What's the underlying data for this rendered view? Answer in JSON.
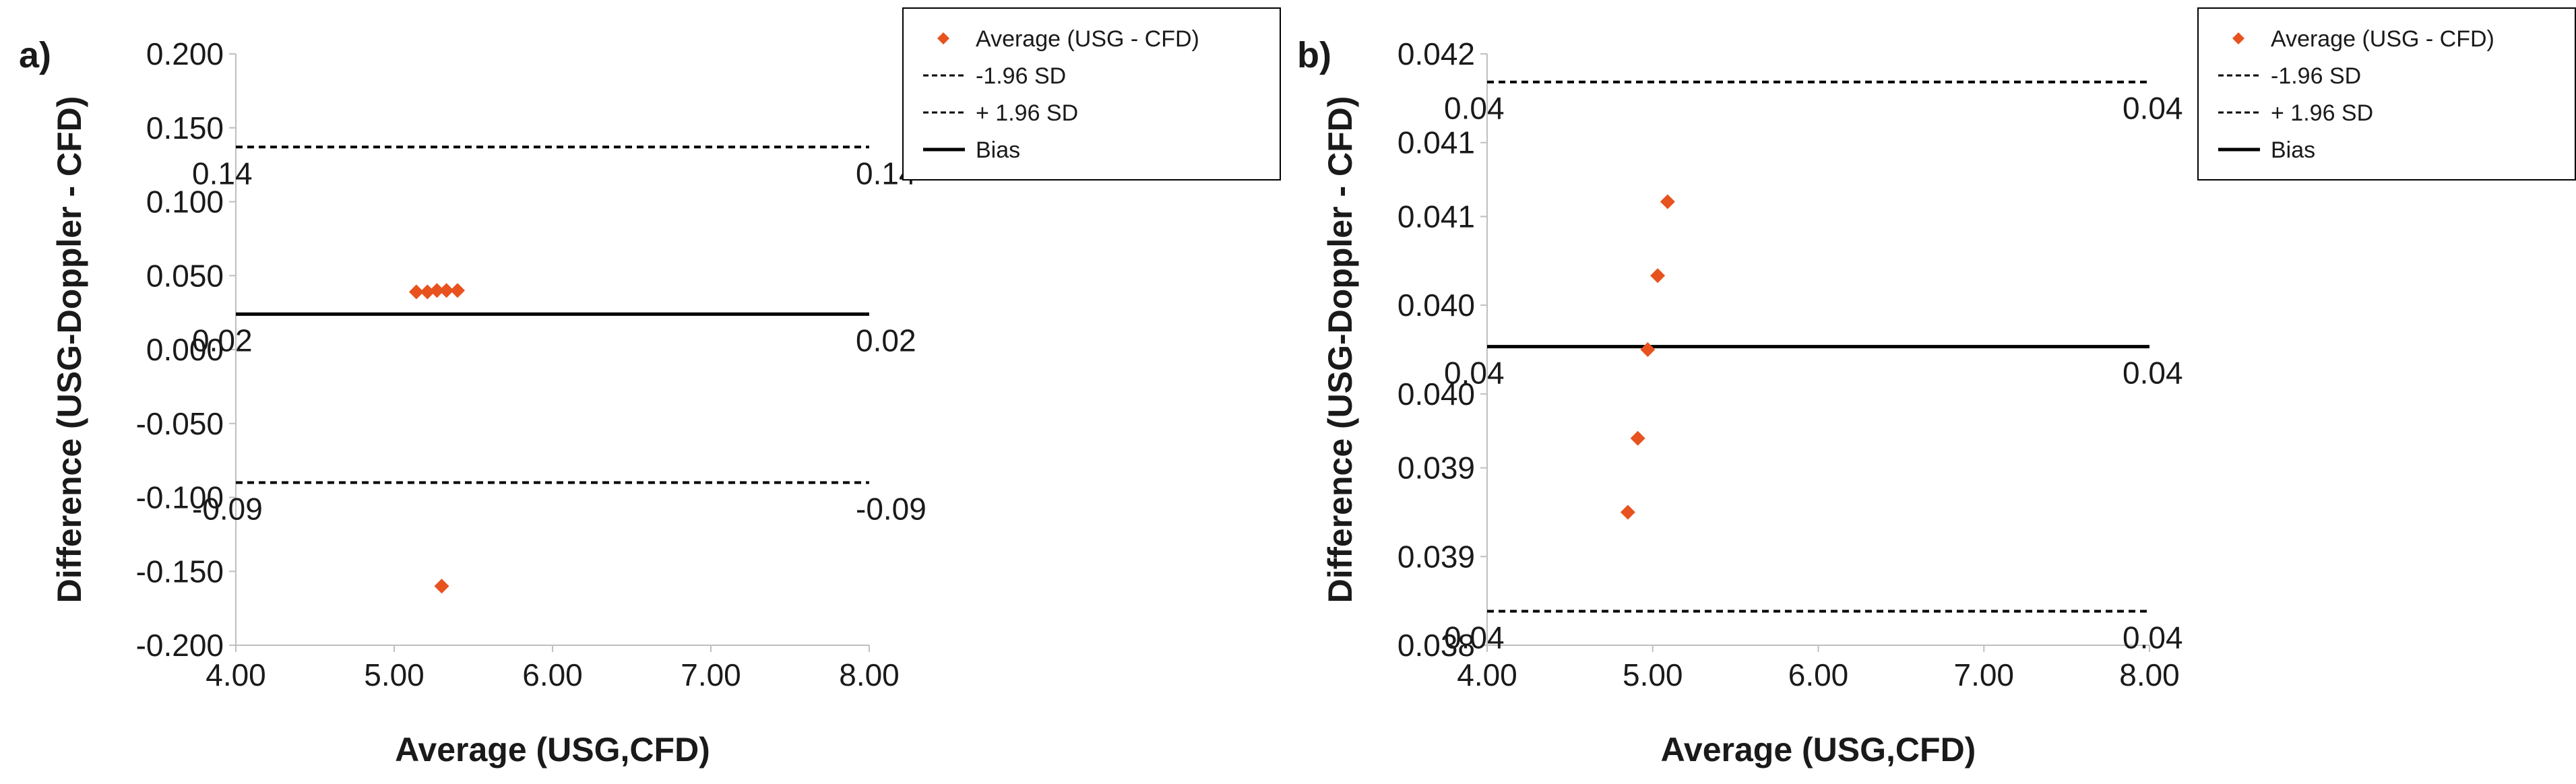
{
  "chart_data": [
    {
      "type": "scatter",
      "panel_label": "a)",
      "xlabel": "Average (USG,CFD)",
      "ylabel": "Difference (USG-Doppler - CFD)",
      "xlim": [
        4.0,
        8.0
      ],
      "ylim": [
        -0.2,
        0.2
      ],
      "x_ticks": [
        "4.00",
        "5.00",
        "6.00",
        "7.00",
        "8.00"
      ],
      "y_ticks": [
        "0.200",
        "0.150",
        "0.100",
        "0.050",
        "0.000",
        "-0.050",
        "-0.100",
        "-0.150",
        "-0.200"
      ],
      "y_tick_values": [
        0.2,
        0.15,
        0.1,
        0.05,
        0.0,
        -0.05,
        -0.1,
        -0.15,
        -0.2
      ],
      "series": [
        {
          "name": "Average (USG - CFD)",
          "color": "#e8521f",
          "points": [
            {
              "x": 5.14,
              "y": 0.039
            },
            {
              "x": 5.21,
              "y": 0.039
            },
            {
              "x": 5.27,
              "y": 0.04
            },
            {
              "x": 5.33,
              "y": 0.04
            },
            {
              "x": 5.4,
              "y": 0.04
            },
            {
              "x": 5.3,
              "y": -0.16
            }
          ]
        }
      ],
      "reference_lines": [
        {
          "name": "-1.96 SD",
          "value": -0.09,
          "style": "dashed",
          "left_label": "-0.09",
          "right_label": "-0.09"
        },
        {
          "name": "+ 1.96 SD",
          "value": 0.137,
          "style": "dashed",
          "left_label": "0.14",
          "right_label": "0.14"
        },
        {
          "name": "Bias",
          "value": 0.024,
          "style": "solid",
          "left_label": "0.02",
          "right_label": "0.02"
        }
      ],
      "legend": [
        {
          "label": "Average (USG - CFD)",
          "kind": "marker"
        },
        {
          "label": "-1.96 SD",
          "kind": "dashed"
        },
        {
          "label": "+ 1.96 SD",
          "kind": "dashed"
        },
        {
          "label": "Bias",
          "kind": "solid"
        }
      ]
    },
    {
      "type": "scatter",
      "panel_label": "b)",
      "xlabel": "Average (USG,CFD)",
      "ylabel": "Difference (USG-Doppler - CFD)",
      "xlim": [
        4.0,
        8.0
      ],
      "ylim": [
        0.038,
        0.042
      ],
      "x_ticks": [
        "4.00",
        "5.00",
        "6.00",
        "7.00",
        "8.00"
      ],
      "y_ticks": [
        "0.042",
        "0.041",
        "0.041",
        "0.040",
        "0.040",
        "0.039",
        "0.039",
        "0.038"
      ],
      "y_tick_values": [
        0.042,
        0.0414,
        0.0409,
        0.0403,
        0.0397,
        0.0392,
        0.0386,
        0.038
      ],
      "series": [
        {
          "name": "Average (USG - CFD)",
          "color": "#e8521f",
          "points": [
            {
              "x": 5.09,
              "y": 0.041
            },
            {
              "x": 5.03,
              "y": 0.0405
            },
            {
              "x": 4.97,
              "y": 0.04
            },
            {
              "x": 4.91,
              "y": 0.0394
            },
            {
              "x": 4.85,
              "y": 0.0389
            }
          ]
        }
      ],
      "reference_lines": [
        {
          "name": "-1.96 SD",
          "value": 0.03823,
          "style": "dashed",
          "left_label": "0.04",
          "right_label": "0.04"
        },
        {
          "name": "+ 1.96 SD",
          "value": 0.04181,
          "style": "dashed",
          "left_label": "0.04",
          "right_label": "0.04"
        },
        {
          "name": "Bias",
          "value": 0.04002,
          "style": "solid",
          "left_label": "0.04",
          "right_label": "0.04"
        }
      ],
      "legend": [
        {
          "label": "Average (USG - CFD)",
          "kind": "marker"
        },
        {
          "label": "-1.96 SD",
          "kind": "dashed"
        },
        {
          "label": "+ 1.96 SD",
          "kind": "dashed"
        },
        {
          "label": "Bias",
          "kind": "solid"
        }
      ]
    }
  ]
}
